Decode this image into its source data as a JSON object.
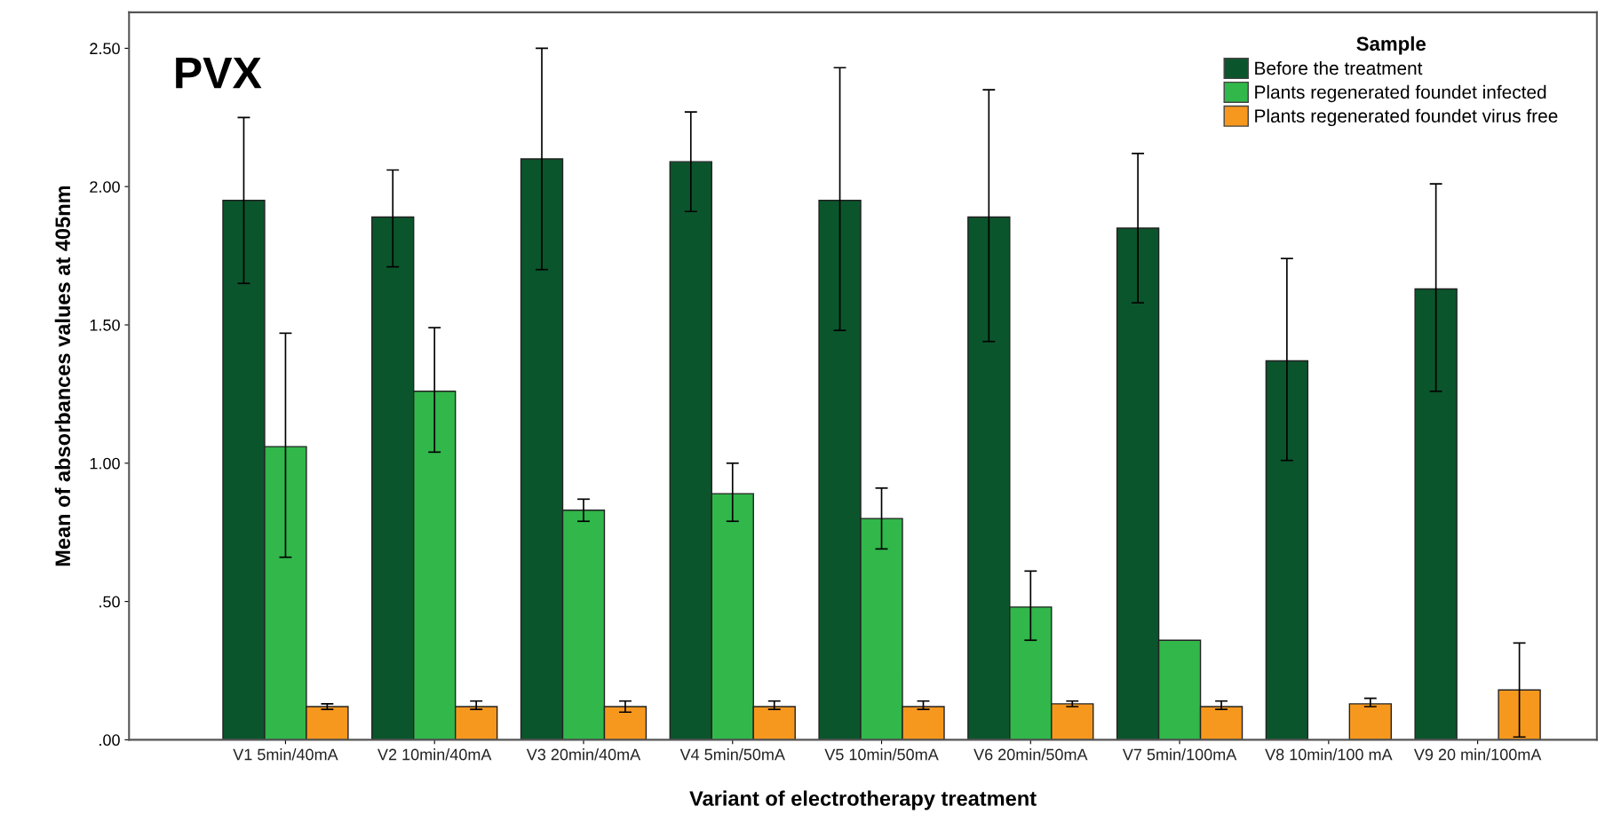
{
  "chart_data": {
    "type": "bar",
    "xlabel": "Variant of electrotherapy treatment",
    "ylabel": "Mean of absorbances values at 405nm",
    "legend_title": "Sample",
    "annotations": [
      "PVX"
    ],
    "categories": [
      "V1 5min/40mA",
      "V2 10min/40mA",
      "V3 20min/40mA",
      "V4 5min/50mA",
      "V5 10min/50mA",
      "V6 20min/50mA",
      "V7 5min/100mA",
      "V8 10min/100 mA",
      "V9 20 min/100mA"
    ],
    "series": [
      {
        "name": "Before the treatment",
        "color": "#0b552c",
        "values": [
          1.95,
          1.89,
          2.1,
          2.09,
          1.95,
          1.89,
          1.85,
          1.37,
          1.63
        ],
        "errors": [
          [
            1.65,
            2.25
          ],
          [
            1.71,
            2.06
          ],
          [
            1.7,
            2.5
          ],
          [
            1.91,
            2.27
          ],
          [
            1.48,
            2.43
          ],
          [
            1.44,
            2.35
          ],
          [
            1.58,
            2.12
          ],
          [
            1.01,
            1.74
          ],
          [
            1.26,
            2.01
          ]
        ]
      },
      {
        "name": "Plants regenerated foundet infected",
        "color": "#31b74a",
        "values": [
          1.06,
          1.26,
          0.83,
          0.89,
          0.8,
          0.48,
          0.36,
          null,
          null
        ],
        "errors": [
          [
            0.66,
            1.47
          ],
          [
            1.04,
            1.49
          ],
          [
            0.79,
            0.87
          ],
          [
            0.79,
            1.0
          ],
          [
            0.69,
            0.91
          ],
          [
            0.36,
            0.61
          ],
          null,
          null,
          null
        ]
      },
      {
        "name": "Plants regenerated foundet virus free",
        "color": "#f7981e",
        "values": [
          0.12,
          0.12,
          0.12,
          0.12,
          0.12,
          0.13,
          0.12,
          0.13,
          0.18
        ],
        "errors": [
          [
            0.11,
            0.13
          ],
          [
            0.11,
            0.14
          ],
          [
            0.1,
            0.14
          ],
          [
            0.11,
            0.14
          ],
          [
            0.11,
            0.14
          ],
          [
            0.12,
            0.14
          ],
          [
            0.11,
            0.14
          ],
          [
            0.12,
            0.15
          ],
          [
            0.01,
            0.35
          ]
        ]
      }
    ],
    "ylim": [
      0,
      2.63
    ],
    "yticks": [
      {
        "value": 0,
        "label": ".00"
      },
      {
        "value": 0.5,
        "label": ".50"
      },
      {
        "value": 1.0,
        "label": "1.00"
      },
      {
        "value": 1.5,
        "label": "1.50"
      },
      {
        "value": 2.0,
        "label": "2.00"
      },
      {
        "value": 2.5,
        "label": "2.50"
      }
    ],
    "grid": false,
    "legend": "top right"
  }
}
